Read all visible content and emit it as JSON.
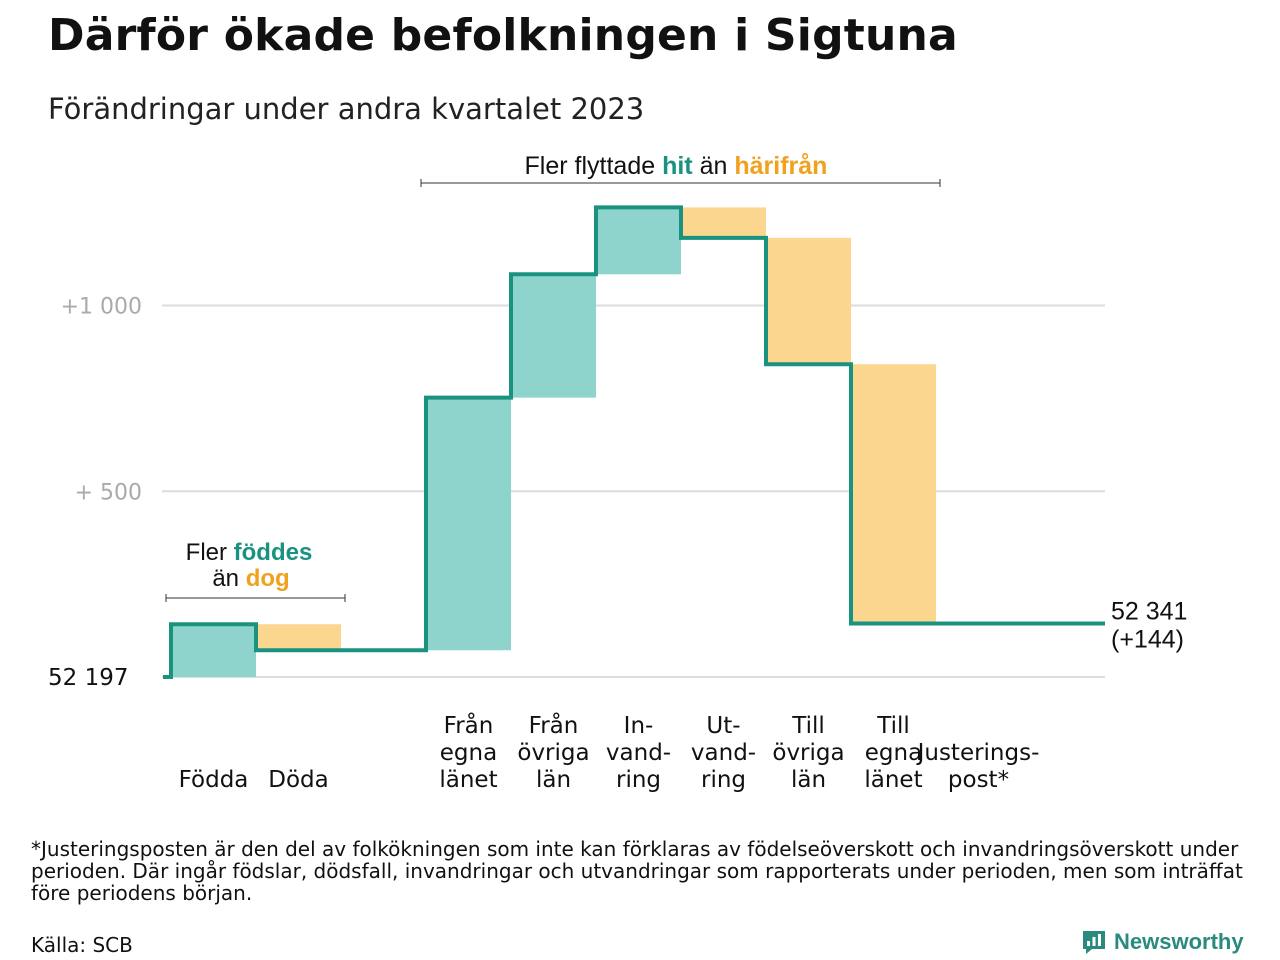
{
  "title": "Därför ökade befolkningen i Sigtuna",
  "subtitle": "Förändringar under andra kvartalet 2023",
  "footnote": "*Justeringsposten är den del av folkökningen som inte kan förklaras av födelseöverskott och invandringsöverskott under perioden. Där ingår födslar, dödsfall, invandringar och utvandringar som rapporterats under perioden, men som inträffat före periodens början.",
  "source": "Källa: SCB",
  "brand": {
    "name": "Newsworthy",
    "icon": "newsworthy-logo-icon",
    "color": "#2a8a80"
  },
  "colors": {
    "increase": "#8ed4cc",
    "decrease": "#fbd68f",
    "line": "#1a9280",
    "grid": "#dddddd",
    "tick_text": "#aaaaaa"
  },
  "chart_data": {
    "type": "waterfall",
    "start_value": 52197,
    "end_value": 52341,
    "end_label": "52 341",
    "end_change_label": "(+144)",
    "start_label": "52 197",
    "y_range": [
      0,
      1000
    ],
    "y_ticks": [
      {
        "value": 500,
        "label": "+ 500"
      },
      {
        "value": 1000,
        "label": "+1 000"
      }
    ],
    "grid": true,
    "steps": [
      {
        "category": [
          "Födda"
        ],
        "change": 142,
        "sign": "in"
      },
      {
        "category": [
          "Döda"
        ],
        "change": -70,
        "sign": "out"
      },
      {
        "category": [
          "Från",
          "egna",
          "länet"
        ],
        "change": 680,
        "sign": "in"
      },
      {
        "category": [
          "Från",
          "övriga",
          "län"
        ],
        "change": 332,
        "sign": "in"
      },
      {
        "category": [
          "In-",
          "vand-",
          "ring"
        ],
        "change": 180,
        "sign": "in"
      },
      {
        "category": [
          "Ut-",
          "vand-",
          "ring"
        ],
        "change": -82,
        "sign": "out"
      },
      {
        "category": [
          "Till",
          "övriga",
          "län"
        ],
        "change": -340,
        "sign": "out"
      },
      {
        "category": [
          "Till",
          "egna",
          "länet"
        ],
        "change": -698,
        "sign": "out"
      },
      {
        "category": [
          "Justerings-",
          "post*"
        ],
        "change": 0,
        "sign": "adj"
      }
    ],
    "annotations": {
      "births": {
        "line1_plain": "Fler",
        "line1_highlight": "föddes",
        "line2_plain": "än",
        "line2_highlight": "dog"
      },
      "migration": {
        "plain1": "Fler flyttade",
        "highlight1": "hit",
        "plain2": "än",
        "highlight2": "härifrån"
      }
    },
    "highlight_colors": {
      "in": "#1a9280",
      "out": "#f0a21e"
    }
  }
}
